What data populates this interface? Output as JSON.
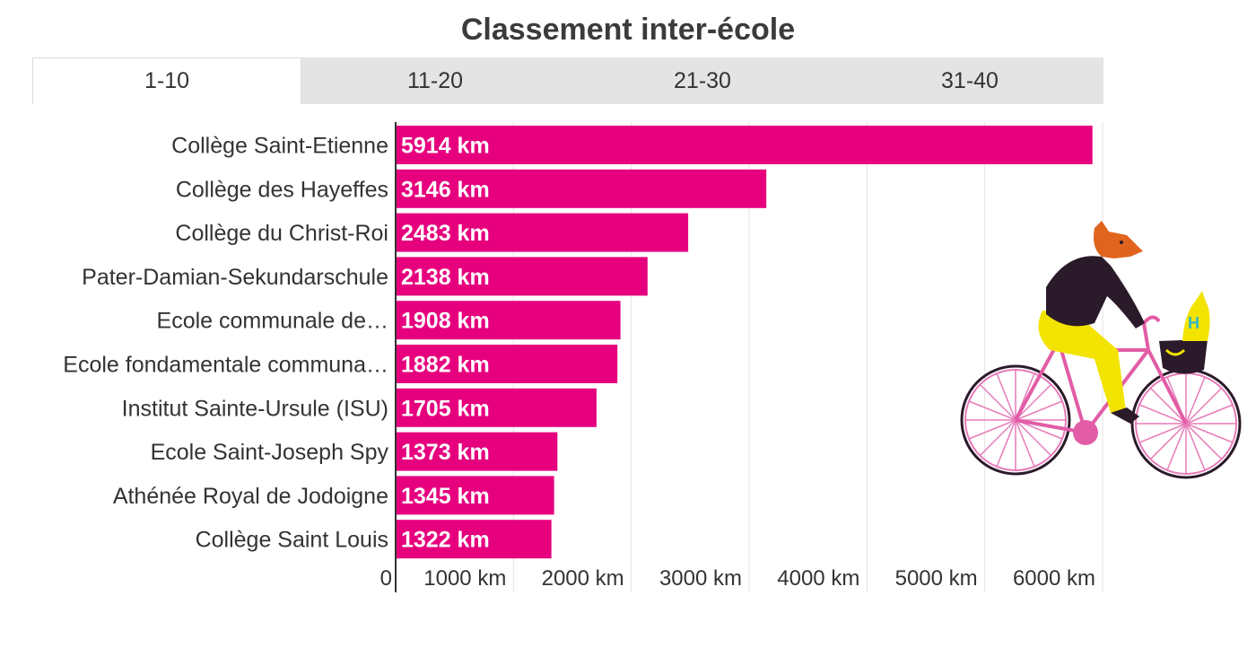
{
  "title": "Classement inter-école",
  "tabs": [
    {
      "label": "1-10",
      "active": true
    },
    {
      "label": "11-20",
      "active": false
    },
    {
      "label": "21-30",
      "active": false
    },
    {
      "label": "31-40",
      "active": false
    }
  ],
  "colors": {
    "bar": "#e6007e",
    "bar_label": "#ffffff",
    "grid": "#e3e3e3",
    "axis": "#333333",
    "tab_bg": "#e4e4e4"
  },
  "illustration": {
    "icon": "fox-riding-bicycle-illustration",
    "basket_letter": "H"
  },
  "chart_data": {
    "type": "bar",
    "orientation": "horizontal",
    "categories": [
      "Collège Saint-Etienne",
      "Collège des Hayeffes",
      "Collège du Christ-Roi",
      "Pater-Damian-Sekundarschule",
      "Ecole communale de…",
      "Ecole fondamentale communa…",
      "Institut Sainte-Ursule (ISU)",
      "Ecole Saint-Joseph Spy",
      "Athénée Royal de Jodoigne",
      "Collège Saint Louis"
    ],
    "values": [
      5914,
      3146,
      2483,
      2138,
      1908,
      1882,
      1705,
      1373,
      1345,
      1322
    ],
    "data_labels": [
      "5914 km",
      "3146 km",
      "2483 km",
      "2138 km",
      "1908 km",
      "1882 km",
      "1705 km",
      "1373 km",
      "1345 km",
      "1322 km"
    ],
    "xlim": [
      0,
      6000
    ],
    "xticks": [
      0,
      1000,
      2000,
      3000,
      4000,
      5000,
      6000
    ],
    "xtick_labels": [
      "0",
      "1000 km",
      "2000 km",
      "3000 km",
      "4000 km",
      "5000 km",
      "6000 km"
    ],
    "grid": true,
    "legend": "none"
  }
}
